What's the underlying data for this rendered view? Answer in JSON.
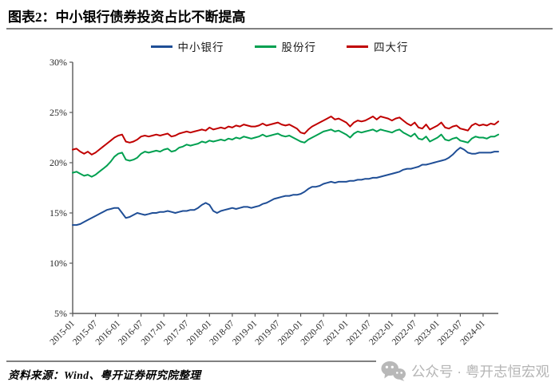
{
  "page": {
    "title": "图表2：中小银行债券投资占比不断提高",
    "source": "资料来源：Wind、粤开证券研究院整理",
    "watermark": "公众号 · 粤开志恒宏观"
  },
  "colors": {
    "axis": "#595959",
    "tick_label": "#262626",
    "blue": "#1F4E96",
    "green": "#00A050",
    "red": "#C00000",
    "watermark_gray": "#B5B5B5"
  },
  "chart_data": {
    "type": "line",
    "title": "图表2：中小银行债券投资占比不断提高",
    "xlabel": "",
    "ylabel": "",
    "ylim": [
      5,
      30
    ],
    "grid": false,
    "legend_position": "top",
    "y_ticks": [
      "5%",
      "10%",
      "15%",
      "20%",
      "25%",
      "30%"
    ],
    "x_ticks": [
      "2015-01",
      "2015-07",
      "2016-01",
      "2016-07",
      "2017-01",
      "2017-07",
      "2018-01",
      "2018-07",
      "2019-01",
      "2019-07",
      "2020-01",
      "2020-07",
      "2021-01",
      "2021-07",
      "2022-01",
      "2022-07",
      "2023-01",
      "2023-07",
      "2024-01"
    ],
    "x": [
      "2015-01",
      "2015-02",
      "2015-03",
      "2015-04",
      "2015-05",
      "2015-06",
      "2015-07",
      "2015-08",
      "2015-09",
      "2015-10",
      "2015-11",
      "2015-12",
      "2016-01",
      "2016-02",
      "2016-03",
      "2016-04",
      "2016-05",
      "2016-06",
      "2016-07",
      "2016-08",
      "2016-09",
      "2016-10",
      "2016-11",
      "2016-12",
      "2017-01",
      "2017-02",
      "2017-03",
      "2017-04",
      "2017-05",
      "2017-06",
      "2017-07",
      "2017-08",
      "2017-09",
      "2017-10",
      "2017-11",
      "2017-12",
      "2018-01",
      "2018-02",
      "2018-03",
      "2018-04",
      "2018-05",
      "2018-06",
      "2018-07",
      "2018-08",
      "2018-09",
      "2018-10",
      "2018-11",
      "2018-12",
      "2019-01",
      "2019-02",
      "2019-03",
      "2019-04",
      "2019-05",
      "2019-06",
      "2019-07",
      "2019-08",
      "2019-09",
      "2019-10",
      "2019-11",
      "2019-12",
      "2020-01",
      "2020-02",
      "2020-03",
      "2020-04",
      "2020-05",
      "2020-06",
      "2020-07",
      "2020-08",
      "2020-09",
      "2020-10",
      "2020-11",
      "2020-12",
      "2021-01",
      "2021-02",
      "2021-03",
      "2021-04",
      "2021-05",
      "2021-06",
      "2021-07",
      "2021-08",
      "2021-09",
      "2021-10",
      "2021-11",
      "2021-12",
      "2022-01",
      "2022-02",
      "2022-03",
      "2022-04",
      "2022-05",
      "2022-06",
      "2022-07",
      "2022-08",
      "2022-09",
      "2022-10",
      "2022-11",
      "2022-12",
      "2023-01",
      "2023-02",
      "2023-03",
      "2023-04",
      "2023-05",
      "2023-06",
      "2023-07",
      "2023-08",
      "2023-09",
      "2023-10",
      "2023-11",
      "2023-12",
      "2024-01",
      "2024-02",
      "2024-03",
      "2024-04",
      "2024-05"
    ],
    "series": [
      {
        "name": "中小银行",
        "color": "#1F4E96",
        "values": [
          13.8,
          13.8,
          13.9,
          14.1,
          14.3,
          14.5,
          14.7,
          14.9,
          15.1,
          15.3,
          15.4,
          15.5,
          15.5,
          15.0,
          14.5,
          14.6,
          14.8,
          15.0,
          14.9,
          14.8,
          14.9,
          15.0,
          15.0,
          15.1,
          15.1,
          15.2,
          15.1,
          15.0,
          15.1,
          15.2,
          15.2,
          15.3,
          15.3,
          15.5,
          15.8,
          16.0,
          15.8,
          15.2,
          15.0,
          15.2,
          15.3,
          15.4,
          15.5,
          15.4,
          15.5,
          15.6,
          15.6,
          15.5,
          15.6,
          15.7,
          15.9,
          16.0,
          16.2,
          16.4,
          16.5,
          16.6,
          16.7,
          16.7,
          16.8,
          16.8,
          16.9,
          17.1,
          17.4,
          17.6,
          17.6,
          17.7,
          17.9,
          18.0,
          18.1,
          18.0,
          18.1,
          18.1,
          18.1,
          18.2,
          18.2,
          18.3,
          18.3,
          18.4,
          18.4,
          18.5,
          18.5,
          18.6,
          18.7,
          18.8,
          18.9,
          19.0,
          19.1,
          19.3,
          19.4,
          19.4,
          19.5,
          19.6,
          19.8,
          19.8,
          19.9,
          20.0,
          20.1,
          20.2,
          20.3,
          20.5,
          20.8,
          21.2,
          21.5,
          21.3,
          21.0,
          20.9,
          20.9,
          21.0,
          21.0,
          21.0,
          21.0,
          21.1,
          21.1
        ]
      },
      {
        "name": "股份行",
        "color": "#00A050",
        "values": [
          19.0,
          19.1,
          18.9,
          18.7,
          18.8,
          18.6,
          18.8,
          19.1,
          19.4,
          19.7,
          20.1,
          20.6,
          20.9,
          21.0,
          20.3,
          20.2,
          20.3,
          20.5,
          20.9,
          21.1,
          21.0,
          21.1,
          21.2,
          21.1,
          21.3,
          21.4,
          21.1,
          21.2,
          21.5,
          21.6,
          21.8,
          21.7,
          21.8,
          21.9,
          22.1,
          22.0,
          22.2,
          22.1,
          22.2,
          22.3,
          22.2,
          22.4,
          22.3,
          22.5,
          22.4,
          22.6,
          22.5,
          22.4,
          22.5,
          22.6,
          22.8,
          22.6,
          22.7,
          22.8,
          22.9,
          22.7,
          22.6,
          22.7,
          22.5,
          22.3,
          22.1,
          22.0,
          22.3,
          22.5,
          22.7,
          22.9,
          23.1,
          23.2,
          23.3,
          23.1,
          23.2,
          23.0,
          22.8,
          22.5,
          22.9,
          23.1,
          23.0,
          23.1,
          23.2,
          23.3,
          23.1,
          23.3,
          23.2,
          23.1,
          23.0,
          23.2,
          23.3,
          23.0,
          22.8,
          22.6,
          22.9,
          22.4,
          22.3,
          22.6,
          22.1,
          22.3,
          22.5,
          22.8,
          22.3,
          22.2,
          22.4,
          22.5,
          22.2,
          22.1,
          22.0,
          22.4,
          22.6,
          22.5,
          22.5,
          22.4,
          22.6,
          22.6,
          22.8
        ]
      },
      {
        "name": "四大行",
        "color": "#C00000",
        "values": [
          21.3,
          21.4,
          21.1,
          20.9,
          21.1,
          20.8,
          21.0,
          21.3,
          21.6,
          21.9,
          22.2,
          22.5,
          22.7,
          22.8,
          22.1,
          22.0,
          22.1,
          22.3,
          22.6,
          22.7,
          22.6,
          22.7,
          22.8,
          22.7,
          22.8,
          22.9,
          22.6,
          22.7,
          22.9,
          23.0,
          23.1,
          23.0,
          23.1,
          23.2,
          23.3,
          23.2,
          23.5,
          23.3,
          23.4,
          23.5,
          23.4,
          23.6,
          23.5,
          23.7,
          23.6,
          23.8,
          23.7,
          23.6,
          23.6,
          23.7,
          23.9,
          23.7,
          23.8,
          23.9,
          24.0,
          23.8,
          23.7,
          23.8,
          23.6,
          23.4,
          23.0,
          22.9,
          23.3,
          23.6,
          23.8,
          24.0,
          24.2,
          24.4,
          24.6,
          24.3,
          24.4,
          24.2,
          24.0,
          23.6,
          24.0,
          24.2,
          24.1,
          24.2,
          24.4,
          24.6,
          24.3,
          24.6,
          24.5,
          24.4,
          24.2,
          24.4,
          24.5,
          24.2,
          23.9,
          23.7,
          24.0,
          23.5,
          23.4,
          23.8,
          23.3,
          23.5,
          23.7,
          24.0,
          23.5,
          23.4,
          23.6,
          23.7,
          23.4,
          23.3,
          23.2,
          23.7,
          23.9,
          23.7,
          23.8,
          23.7,
          23.9,
          23.8,
          24.1
        ]
      }
    ]
  }
}
